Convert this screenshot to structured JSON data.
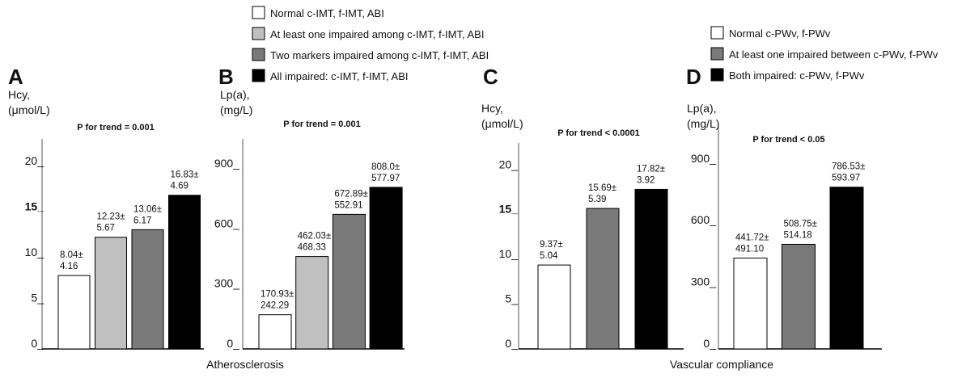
{
  "legend_left": [
    {
      "label": "Normal c-IMT, f-IMT, ABI",
      "color": "#ffffff"
    },
    {
      "label": "At least one impaired among c-IMT, f-IMT, ABI",
      "color": "#c0c0c0"
    },
    {
      "label": "Two markers impaired among c-IMT, f-IMT, ABI",
      "color": "#7a7a7a"
    },
    {
      "label": "All impaired: c-IMT, f-IMT, ABI",
      "color": "#000000"
    }
  ],
  "legend_right": [
    {
      "label": "Normal c-PWv, f-PWv",
      "color": "#ffffff"
    },
    {
      "label": "At least one impaired between c-PWv, f-PWv",
      "color": "#7a7a7a"
    },
    {
      "label": "Both impaired: c-PWv, f-PWv",
      "color": "#000000"
    }
  ],
  "group_labels": {
    "left": "Atherosclerosis",
    "right": "Vascular compliance"
  },
  "chart_data": [
    {
      "panel": "A",
      "type": "bar",
      "ylabel_lines": [
        "Hcy,",
        "(μmol/L)"
      ],
      "ptrend": "P for trend = 0.001",
      "ylim": [
        0,
        23
      ],
      "yticks": [
        0,
        5,
        10,
        15,
        20
      ],
      "ytick_labels": [
        "0_",
        "5_",
        "10_",
        "15_",
        "20_"
      ],
      "bold_tick_index": 3,
      "values": [
        8.04,
        12.23,
        13.06,
        16.83
      ],
      "sds": [
        4.16,
        5.67,
        6.17,
        4.69
      ],
      "mean_labels": [
        "8.04±",
        "12.23±",
        "13.06±",
        "16.83±"
      ],
      "sd_labels": [
        "4.16",
        "5.67",
        "6.17",
        "4.69"
      ],
      "colors": [
        "#ffffff",
        "#c0c0c0",
        "#7a7a7a",
        "#000000"
      ]
    },
    {
      "panel": "B",
      "type": "bar",
      "ylabel_lines": [
        "Lp(a),",
        "(mg/L)"
      ],
      "ptrend": "P for trend = 0.001",
      "ylim": [
        0,
        1050
      ],
      "yticks": [
        0,
        300,
        600,
        900
      ],
      "ytick_labels": [
        "0_",
        "300_",
        "600_",
        "900_"
      ],
      "bold_tick_index": -1,
      "values": [
        170.93,
        462.03,
        672.89,
        808.0
      ],
      "sds": [
        242.29,
        468.33,
        552.91,
        577.97
      ],
      "mean_labels": [
        "170.93±",
        "462.03±",
        "672.89±",
        "808.0±"
      ],
      "sd_labels": [
        "242.29",
        "468.33",
        "552.91",
        "577.97"
      ],
      "colors": [
        "#ffffff",
        "#c0c0c0",
        "#7a7a7a",
        "#000000"
      ]
    },
    {
      "panel": "C",
      "type": "bar",
      "ylabel_lines": [
        "Hcy,",
        "(μmol/L)"
      ],
      "ptrend": "P for trend < 0.0001",
      "ylim": [
        0,
        23
      ],
      "yticks": [
        0,
        5,
        10,
        15,
        20
      ],
      "ytick_labels": [
        "0_",
        "5_",
        "10_",
        "15_",
        "20_"
      ],
      "bold_tick_index": 3,
      "values": [
        9.37,
        15.69,
        17.82
      ],
      "sds": [
        5.04,
        5.39,
        3.92
      ],
      "mean_labels": [
        "9.37±",
        "15.69±",
        "17.82±"
      ],
      "sd_labels": [
        "5.04",
        "5.39",
        "3.92"
      ],
      "colors": [
        "#ffffff",
        "#7a7a7a",
        "#000000"
      ]
    },
    {
      "panel": "D",
      "type": "bar",
      "ylabel_lines": [
        "Lp(a),",
        "(mg/L)"
      ],
      "ptrend": "P for trend < 0.05",
      "ylim": [
        0,
        1080
      ],
      "yticks": [
        0,
        300,
        600,
        900
      ],
      "ytick_labels": [
        "0_",
        "300_",
        "600_",
        "900_"
      ],
      "bold_tick_index": -1,
      "values": [
        441.72,
        508.75,
        786.53
      ],
      "sds": [
        491.1,
        514.18,
        593.97
      ],
      "mean_labels": [
        "441.72±",
        "508.75±",
        "786.53±"
      ],
      "sd_labels": [
        "491.10",
        "514.18",
        "593.97"
      ],
      "colors": [
        "#ffffff",
        "#7a7a7a",
        "#000000"
      ]
    }
  ]
}
